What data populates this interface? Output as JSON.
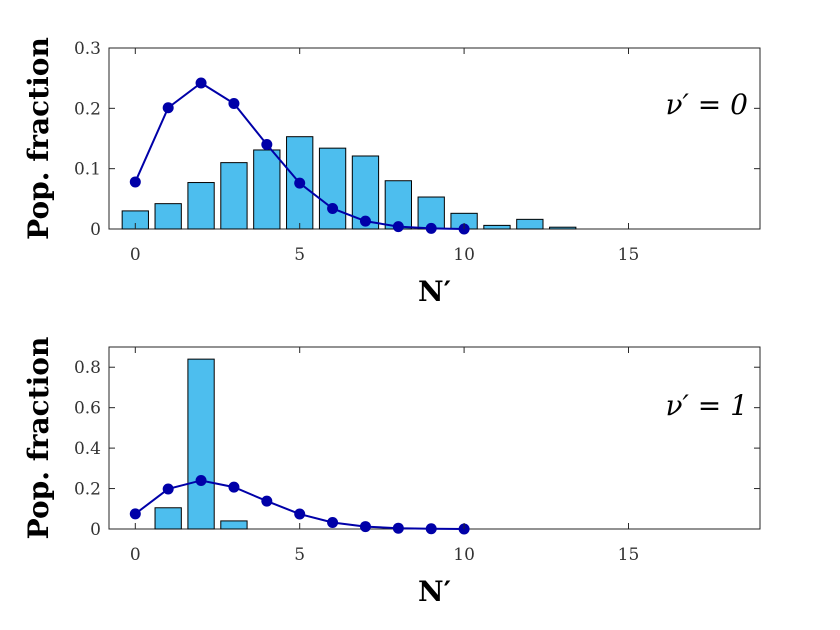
{
  "chart_data": [
    {
      "type": "bar",
      "ylabel": "Pop. fraction",
      "xlabel": "N′",
      "annotation": "ν′ = 0",
      "xlim": [
        -0.8,
        19
      ],
      "ylim": [
        0,
        0.3
      ],
      "xticks": [
        "0",
        "5",
        "10",
        "15"
      ],
      "yticks": [
        "0",
        "0.1",
        "0.2",
        "0.3"
      ],
      "bars": {
        "color": "#4DBEEE",
        "x": [
          0,
          1,
          2,
          3,
          4,
          5,
          6,
          7,
          8,
          9,
          10,
          11,
          12,
          13
        ],
        "values": [
          0.03,
          0.042,
          0.077,
          0.11,
          0.131,
          0.153,
          0.134,
          0.121,
          0.08,
          0.053,
          0.026,
          0.006,
          0.016,
          0.003
        ]
      },
      "line": {
        "color": "#0000A8",
        "x": [
          0,
          1,
          2,
          3,
          4,
          5,
          6,
          7,
          8,
          9,
          10
        ],
        "values": [
          0.078,
          0.201,
          0.242,
          0.208,
          0.14,
          0.076,
          0.034,
          0.013,
          0.004,
          0.001,
          0.0
        ]
      }
    },
    {
      "type": "bar",
      "ylabel": "Pop. fraction",
      "xlabel": "N′",
      "annotation": "ν′ = 1",
      "xlim": [
        -0.8,
        19
      ],
      "ylim": [
        0,
        0.9
      ],
      "xticks": [
        "0",
        "5",
        "10",
        "15"
      ],
      "yticks": [
        "0",
        "0.2",
        "0.4",
        "0.6",
        "0.8"
      ],
      "bars": {
        "color": "#4DBEEE",
        "x": [
          0,
          1,
          2,
          3,
          4,
          5,
          6,
          7,
          8,
          9,
          10,
          11,
          12,
          13
        ],
        "values": [
          0.0,
          0.105,
          0.84,
          0.04,
          0.0,
          0.0,
          0.0,
          0.0,
          0.0,
          0.0,
          0.0,
          0.0,
          0.0,
          0.0
        ]
      },
      "line": {
        "color": "#0000A8",
        "x": [
          0,
          1,
          2,
          3,
          4,
          5,
          6,
          7,
          8,
          9,
          10
        ],
        "values": [
          0.075,
          0.198,
          0.24,
          0.207,
          0.138,
          0.074,
          0.032,
          0.012,
          0.004,
          0.001,
          0.0
        ]
      }
    }
  ]
}
